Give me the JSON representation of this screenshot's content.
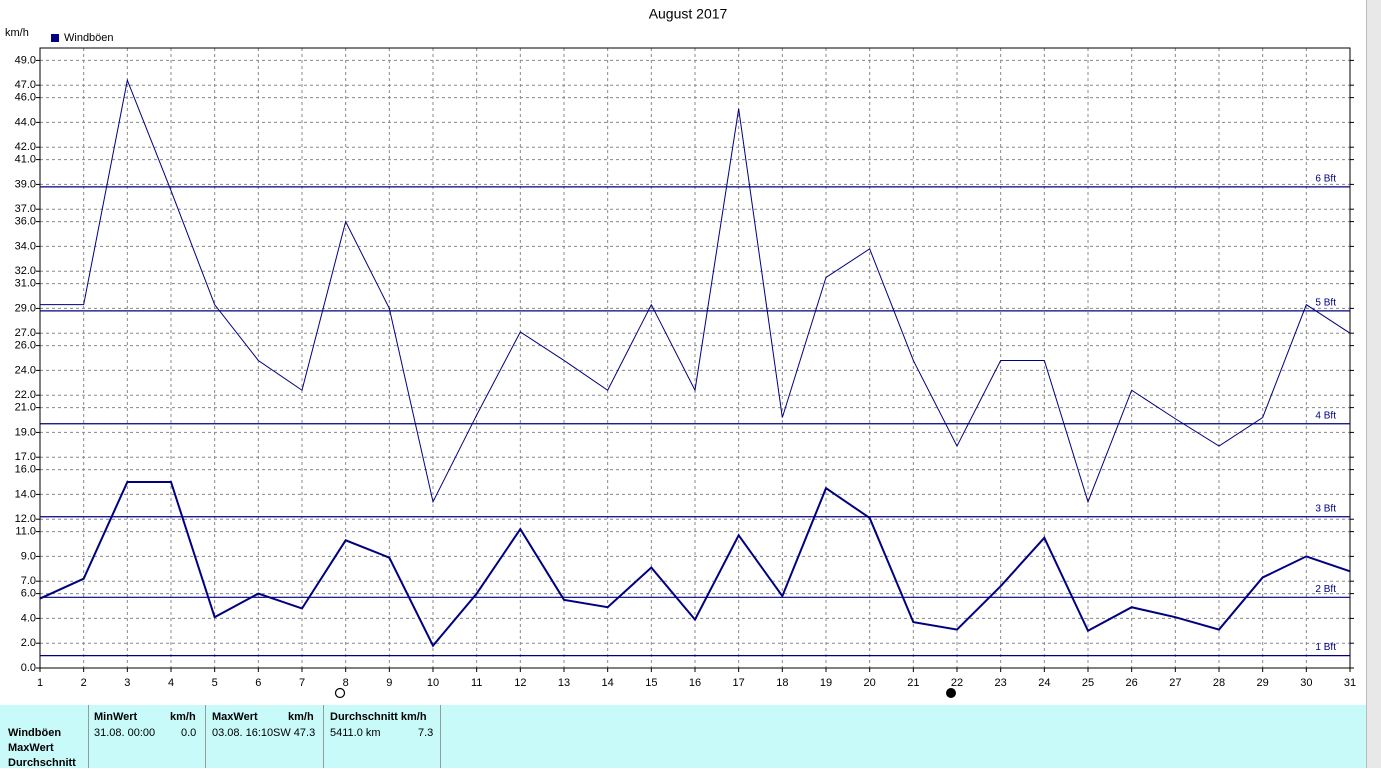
{
  "chart_data": {
    "type": "line",
    "title": "August 2017",
    "y_label": "km/h",
    "xlim": [
      1,
      31
    ],
    "xticks": [
      1,
      2,
      3,
      4,
      5,
      6,
      7,
      8,
      9,
      10,
      11,
      12,
      13,
      14,
      15,
      16,
      17,
      18,
      19,
      20,
      21,
      22,
      23,
      24,
      25,
      26,
      27,
      28,
      29,
      30,
      31
    ],
    "x": [
      1,
      2,
      3,
      4,
      5,
      6,
      7,
      8,
      9,
      10,
      11,
      12,
      13,
      14,
      15,
      16,
      17,
      18,
      19,
      20,
      21,
      22,
      23,
      24,
      25,
      26,
      27,
      28,
      29,
      30,
      31
    ],
    "ylim": [
      0,
      50
    ],
    "yticks": [
      {
        "value": 0,
        "label": "0.0"
      },
      {
        "value": 2,
        "label": "2.0"
      },
      {
        "value": 4,
        "label": "4.0"
      },
      {
        "value": 6,
        "label": "6.0"
      },
      {
        "value": 7,
        "label": "7.0"
      },
      {
        "value": 9,
        "label": "9.0"
      },
      {
        "value": 11,
        "label": "11.0"
      },
      {
        "value": 12,
        "label": "12.0"
      },
      {
        "value": 14,
        "label": "14.0"
      },
      {
        "value": 16,
        "label": "16.0"
      },
      {
        "value": 17,
        "label": "17.0"
      },
      {
        "value": 19,
        "label": "19.0"
      },
      {
        "value": 21,
        "label": "21.0"
      },
      {
        "value": 22,
        "label": "22.0"
      },
      {
        "value": 24,
        "label": "24.0"
      },
      {
        "value": 26,
        "label": "26.0"
      },
      {
        "value": 27,
        "label": "27.0"
      },
      {
        "value": 29,
        "label": "29.0"
      },
      {
        "value": 31,
        "label": "31.0"
      },
      {
        "value": 32,
        "label": "32.0"
      },
      {
        "value": 34,
        "label": "34.0"
      },
      {
        "value": 36,
        "label": "36.0"
      },
      {
        "value": 37,
        "label": "37.0"
      },
      {
        "value": 39,
        "label": "39.0"
      },
      {
        "value": 41,
        "label": "41.0"
      },
      {
        "value": 42,
        "label": "42.0"
      },
      {
        "value": 44,
        "label": "44.0"
      },
      {
        "value": 46,
        "label": "46.0"
      },
      {
        "value": 47,
        "label": "47.0"
      },
      {
        "value": 49,
        "label": "49.0"
      }
    ],
    "grid": true,
    "series": [
      {
        "name": "Windböen",
        "color": "#000080",
        "values": [
          29.3,
          29.3,
          47.4,
          38.5,
          29.3,
          24.8,
          22.4,
          36.0,
          29.0,
          13.4,
          20.4,
          27.1,
          24.8,
          22.4,
          29.3,
          22.4,
          45.1,
          20.2,
          31.5,
          33.8,
          24.8,
          17.9,
          24.8,
          24.8,
          13.4,
          22.4,
          20.1,
          17.9,
          20.2,
          29.3,
          27.0
        ]
      },
      {
        "color": "#000080",
        "values": [
          5.6,
          7.2,
          15.0,
          15.0,
          4.1,
          6.0,
          4.8,
          10.3,
          8.9,
          1.8,
          6.0,
          11.2,
          5.5,
          4.9,
          8.1,
          3.9,
          10.7,
          5.8,
          14.5,
          12.1,
          3.7,
          3.1,
          6.6,
          10.5,
          3.0,
          4.9,
          4.1,
          3.1,
          7.3,
          9.0,
          7.8
        ]
      }
    ],
    "reference_lines": [
      {
        "value": 1.0,
        "label": "1 Bft"
      },
      {
        "value": 5.7,
        "label": "2 Bft"
      },
      {
        "value": 12.2,
        "label": "3 Bft"
      },
      {
        "value": 19.7,
        "label": "4 Bft"
      },
      {
        "value": 28.8,
        "label": "5 Bft"
      },
      {
        "value": 38.8,
        "label": "6 Bft"
      }
    ]
  },
  "stats_table": {
    "row_labels": [
      "Windböen",
      "MaxWert",
      "Durchschnitt"
    ],
    "headers": [
      "MinWert",
      "km/h",
      "MaxWert",
      "km/h",
      "Durchschnitt km/h"
    ],
    "rows": [
      [
        "31.08.  00:00",
        "0.0",
        "03.08.  16:10",
        "SW 47.3",
        "5411.0 km",
        "7.3"
      ]
    ]
  }
}
